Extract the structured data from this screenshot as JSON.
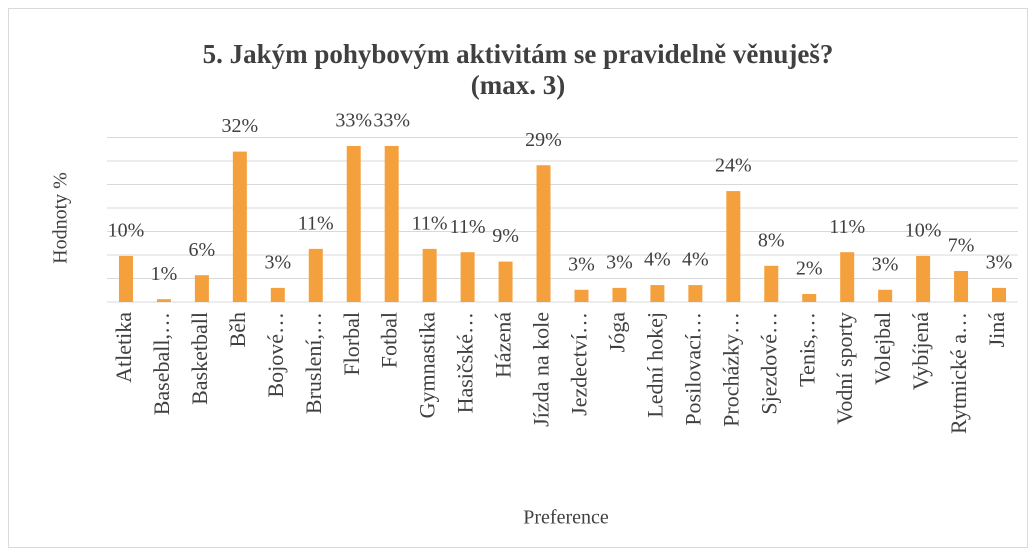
{
  "chart_data": {
    "type": "bar",
    "title": "5. Jakým pohybovým aktivitám se pravidelně věnuješ? (max. 3)",
    "y_label": "Hodnoty %",
    "x_label": "Preference",
    "categories": [
      "Atletika",
      "Baseball,…",
      "Basketball",
      "Běh",
      "Bojové…",
      "Bruslení,…",
      "Florbal",
      "Fotbal",
      "Gymnastika",
      "Hasičské…",
      "Házená",
      "Jízda na kole",
      "Jezdectví…",
      "Jóga",
      "Lední hokej",
      "Posilovací…",
      "Procházky…",
      "Sjezdové…",
      "Tenis,…",
      "Vodní sporty",
      "Volejbal",
      "Vybíjená",
      "Rytmické a…",
      "Jiná"
    ],
    "values": [
      9.8,
      0.6,
      5.7,
      32,
      3,
      11.3,
      33.2,
      33.2,
      11.3,
      10.6,
      8.6,
      29.1,
      2.6,
      3,
      3.6,
      3.6,
      23.6,
      7.7,
      1.7,
      10.6,
      2.6,
      9.8,
      6.6,
      3
    ],
    "value_labels": [
      "10%",
      "1%",
      "6%",
      "32%",
      "3%",
      "11%",
      "33%",
      "33%",
      "11%",
      "11%",
      "9%",
      "29%",
      "3%",
      "3%",
      "4%",
      "4%",
      "24%",
      "8%",
      "2%",
      "11%",
      "3%",
      "10%",
      "7%",
      "3%"
    ],
    "color": "#f4a13d",
    "ylim": [
      0,
      35
    ],
    "yticks": [
      0,
      5,
      10,
      15,
      20,
      25,
      30,
      35
    ],
    "grid": true
  }
}
